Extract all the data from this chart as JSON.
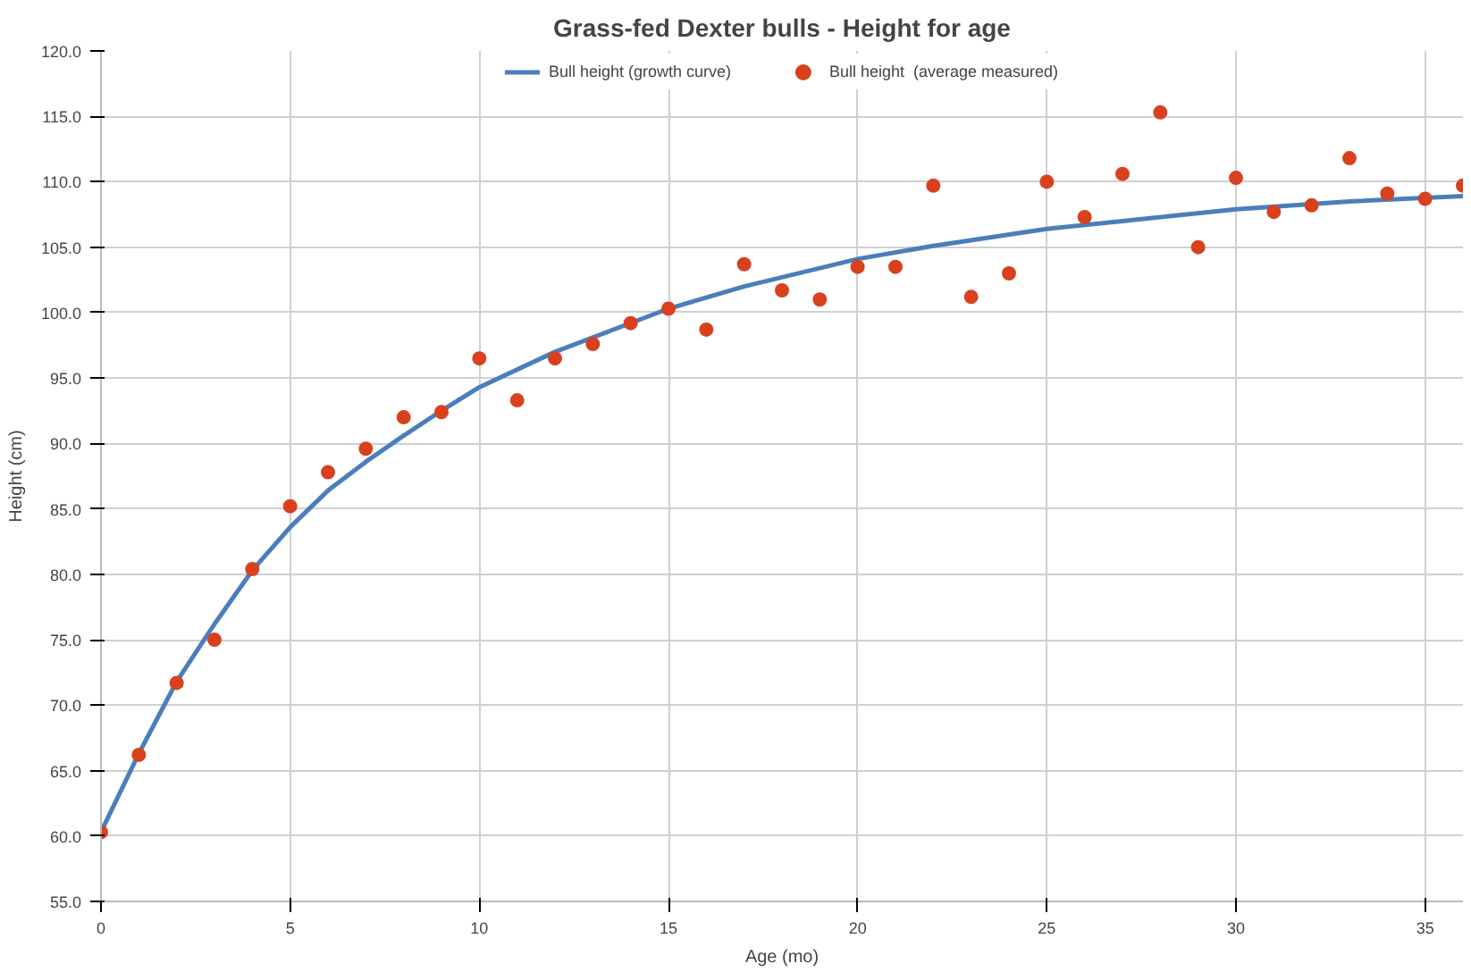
{
  "chart_data": {
    "type": "scatter",
    "title": "Grass-fed Dexter bulls - Height for age",
    "xlabel": "Age (mo)",
    "ylabel": "Height (cm)",
    "xlim": [
      0,
      36
    ],
    "xticks": [
      0,
      5,
      10,
      15,
      20,
      25,
      30,
      35
    ],
    "ylim": [
      55,
      120
    ],
    "yticks": [
      {
        "value": 55,
        "label": "55.0"
      },
      {
        "value": 60,
        "label": "60.0"
      },
      {
        "value": 65,
        "label": "65.0"
      },
      {
        "value": 70,
        "label": "70.0"
      },
      {
        "value": 75,
        "label": "75.0"
      },
      {
        "value": 80,
        "label": "80.0"
      },
      {
        "value": 85,
        "label": "85.0"
      },
      {
        "value": 90,
        "label": "90.0"
      },
      {
        "value": 95,
        "label": "95.0"
      },
      {
        "value": 100,
        "label": "100.0"
      },
      {
        "value": 105,
        "label": "105.0"
      },
      {
        "value": 110,
        "label": "110.0"
      },
      {
        "value": 115,
        "label": "115.0"
      },
      {
        "value": 120,
        "label": "120.0"
      }
    ],
    "grid": true,
    "legend": "top",
    "series": [
      {
        "name": "Bull height (growth curve)",
        "type": "line",
        "color": "#4a7ebb",
        "x": [
          0,
          1,
          2,
          3,
          4,
          5,
          6,
          7,
          8,
          9,
          10,
          12,
          15,
          17,
          20,
          22,
          25,
          27,
          30,
          33,
          36
        ],
        "values": [
          60.3,
          66.3,
          71.8,
          76.2,
          80.3,
          83.6,
          86.4,
          88.6,
          90.6,
          92.5,
          94.3,
          97.0,
          100.3,
          102.0,
          104.1,
          105.1,
          106.4,
          107.0,
          107.9,
          108.5,
          108.9
        ]
      },
      {
        "name": "Bull height  (average measured)",
        "marker": "circle",
        "color": "#d9411e",
        "x": [
          0,
          1,
          2,
          3,
          4,
          5,
          6,
          7,
          8,
          9,
          10,
          11,
          12,
          13,
          14,
          15,
          16,
          17,
          18,
          19,
          20,
          21,
          22,
          23,
          24,
          25,
          26,
          27,
          28,
          29,
          30,
          31,
          32,
          33,
          34,
          35,
          36
        ],
        "values": [
          60.3,
          66.2,
          71.7,
          75.0,
          80.4,
          85.2,
          87.8,
          89.6,
          92.0,
          92.4,
          96.5,
          93.3,
          96.5,
          97.6,
          99.2,
          100.3,
          98.7,
          103.7,
          101.7,
          101.0,
          103.5,
          103.5,
          109.7,
          101.2,
          103.0,
          110.0,
          107.3,
          110.6,
          115.3,
          105.0,
          110.3,
          107.7,
          108.2,
          111.8,
          109.1,
          108.7,
          109.7
        ]
      }
    ]
  }
}
